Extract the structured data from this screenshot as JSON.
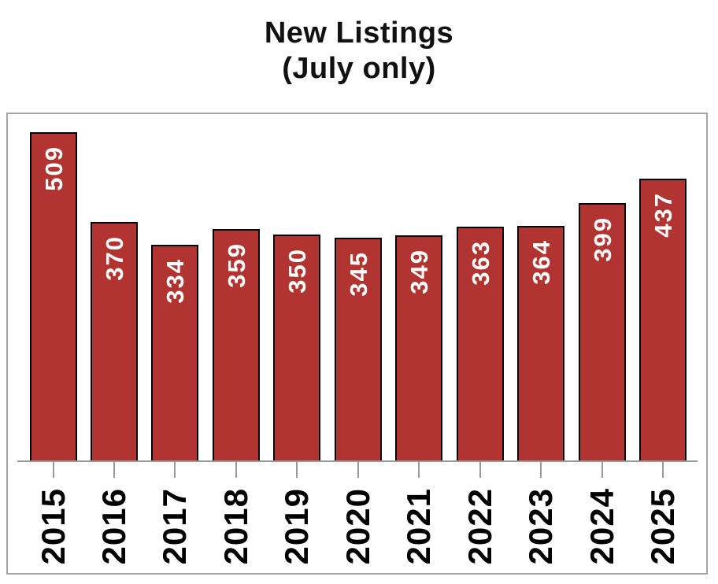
{
  "title": {
    "line1": "New Listings",
    "line2": "(July only)"
  },
  "chart_data": {
    "type": "bar",
    "title": "New Listings (July only)",
    "categories": [
      "2015",
      "2016",
      "2017",
      "2018",
      "2019",
      "2020",
      "2021",
      "2022",
      "2023",
      "2024",
      "2025"
    ],
    "values": [
      509,
      370,
      334,
      359,
      350,
      345,
      349,
      363,
      364,
      399,
      437
    ],
    "xlabel": "",
    "ylabel": "",
    "ylim": [
      0,
      540
    ],
    "grid": false,
    "legend": false,
    "value_label_style": "inside bar near top, rotated vertical reading bottom-to-top",
    "tick_label_style": "below axis, rotated vertical reading bottom-to-top, bold",
    "colors": {
      "bar_fill": "#B23430",
      "bar_border": "#000000",
      "value_label": "#FFFFFF",
      "axis_line": "#999999",
      "tick": "#999999",
      "tick_label": "#000000",
      "frame_border": "#A4A4A4",
      "title": "#111111",
      "background": "#FFFFFF"
    }
  }
}
